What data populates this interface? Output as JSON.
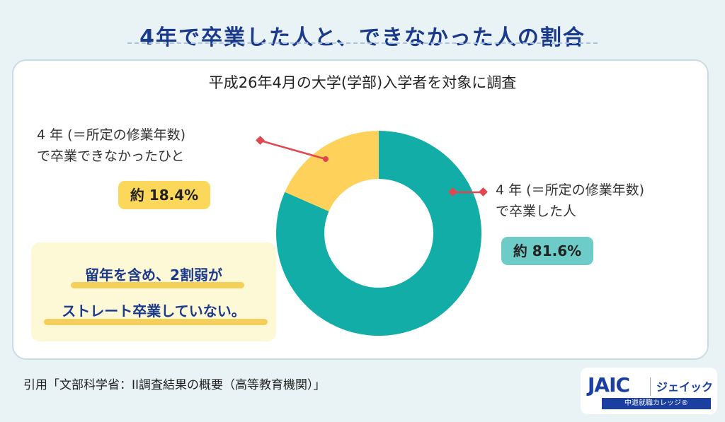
{
  "header": {
    "title": "4年で卒業した人と、できなかった人の割合"
  },
  "chart_data": {
    "type": "pie",
    "subtitle": "平成26年4月の大学(学部)入学者を対象に調査",
    "slices": [
      {
        "label_line1": "4 年 (＝所定の修業年数)",
        "label_line2": "で卒業した人",
        "value": 81.6,
        "value_label": "約 81.6%",
        "color": "#12ada7"
      },
      {
        "label_line1": "4 年 (＝所定の修業年数)",
        "label_line2": "で卒業できなかったひと",
        "value": 18.4,
        "value_label": "約 18.4%",
        "color": "#fdd15a"
      }
    ],
    "donut": true,
    "start_angle_deg": 0,
    "direction": "clockwise"
  },
  "colors": {
    "background": "#e9f3f6",
    "accent_navy": "#1c3a8b",
    "connector_red": "#e0474f",
    "note_bg": "#fdf8d5",
    "highlight": "#f5cf5b"
  },
  "note": {
    "line1": "留年を含め、2割弱が",
    "line2": "ストレート卒業していない。"
  },
  "footer": {
    "source": "引用「文部科学省：II調査結果の概要（高等教育機関）」"
  },
  "logo": {
    "wordmark": "JAIC",
    "kana": "ジェイック",
    "tagline": "中退就職カレッジ®",
    "icon": "jaic-logo-icon"
  }
}
